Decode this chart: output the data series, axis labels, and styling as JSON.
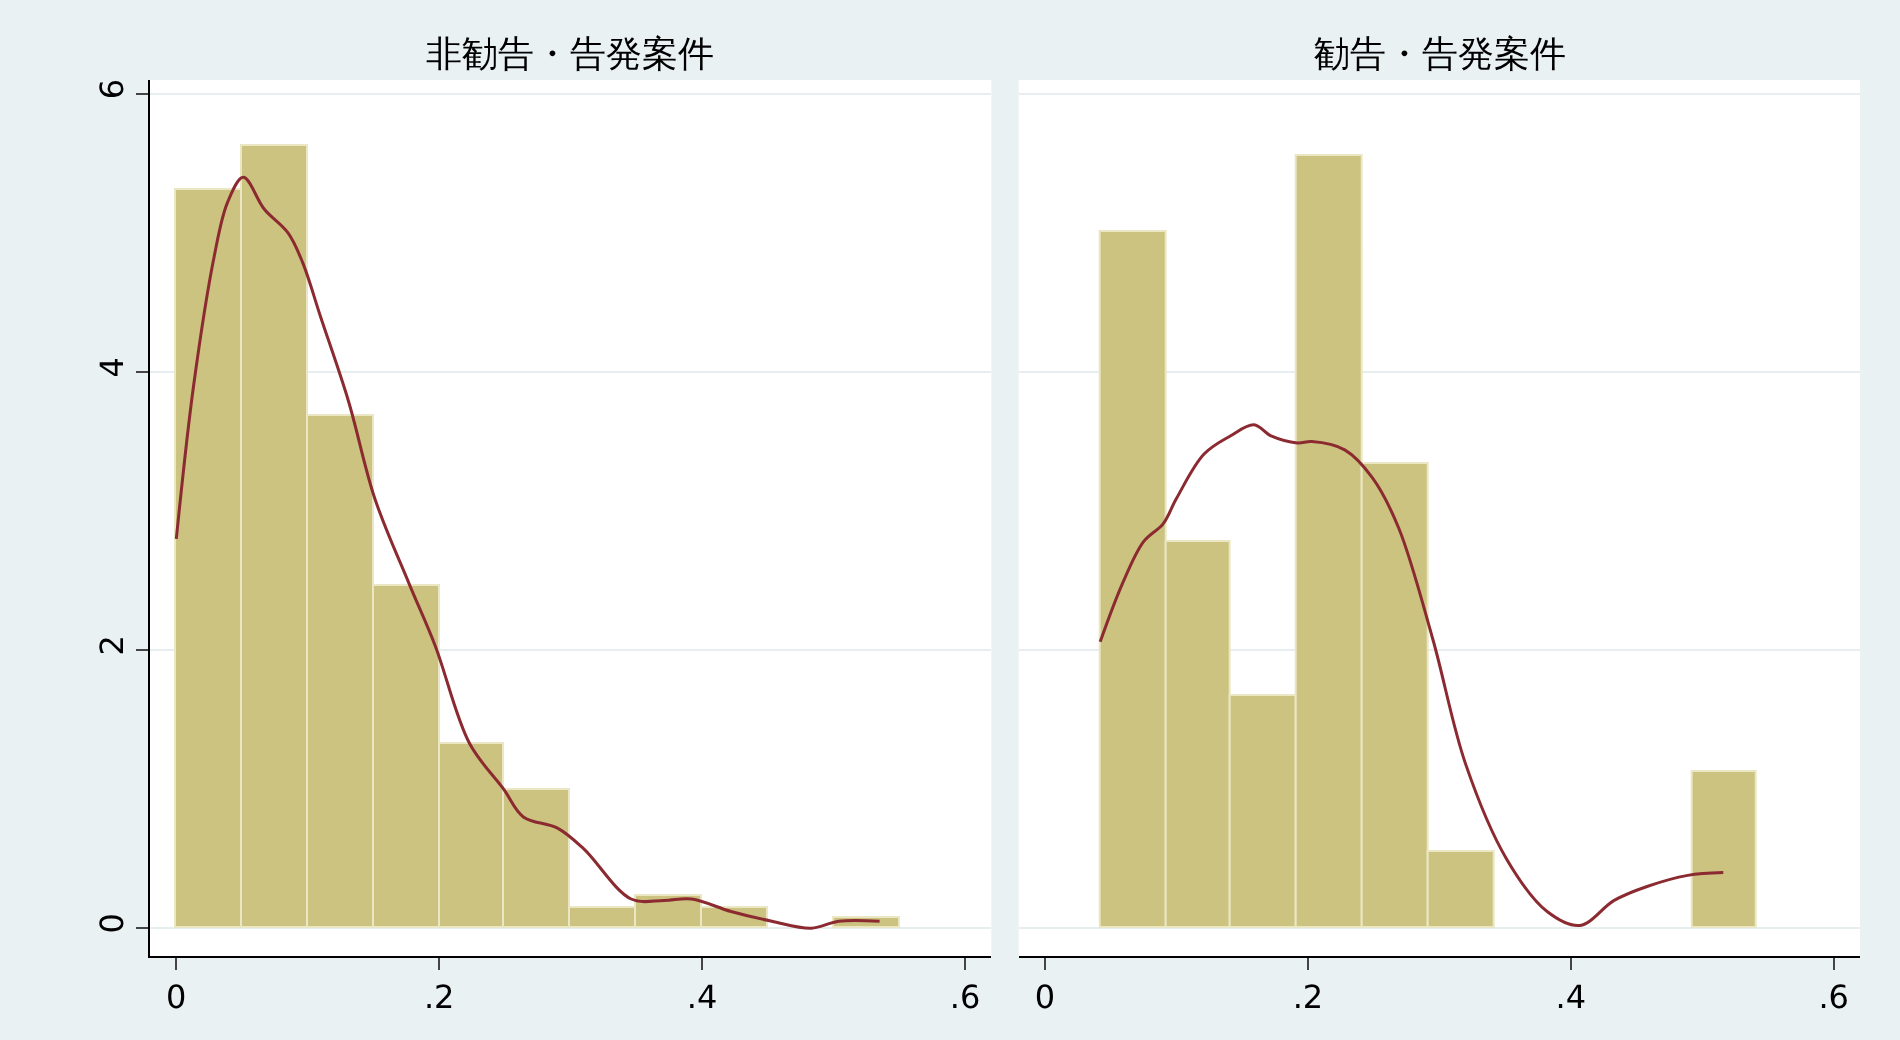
{
  "chart_data": [
    {
      "type": "histogram",
      "title": "非勧告・告発案件",
      "bins": [
        0,
        0.05,
        0.1,
        0.15,
        0.2,
        0.25,
        0.3,
        0.35,
        0.4,
        0.45,
        0.5,
        0.55
      ],
      "values": [
        5.31,
        5.62,
        3.69,
        2.46,
        1.32,
        1.0,
        0.15,
        0.23,
        0.15,
        0,
        0.08
      ],
      "color": "#cbc37f",
      "series": [
        {
          "type": "line",
          "color": "#8b2a30",
          "x": [
            0,
            0.013,
            0.029,
            0.039,
            0.051,
            0.067,
            0.085,
            0.096,
            0.11,
            0.131,
            0.151,
            0.177,
            0.197,
            0.223,
            0.249,
            0.264,
            0.29,
            0.31,
            0.346,
            0.371,
            0.392,
            0.422,
            0.453,
            0.483,
            0.504,
            0.535
          ],
          "values": [
            2.8,
            3.89,
            4.84,
            5.22,
            5.4,
            5.17,
            5.0,
            4.79,
            4.39,
            3.79,
            3.09,
            2.48,
            2.03,
            1.33,
            1.0,
            0.8,
            0.72,
            0.57,
            0.21,
            0.2,
            0.21,
            0.12,
            0.05,
            0,
            0.05,
            0.05
          ]
        }
      ],
      "xlim": [
        -0.02,
        0.62
      ],
      "xticks": [
        0,
        {
          "value": 0.2,
          "label": ".2"
        },
        {
          "value": 0.4,
          "label": ".4"
        },
        {
          "value": 0.6,
          "label": ".6"
        }
      ],
      "ylim": [
        -0.2,
        6.1
      ],
      "yticks": [
        0,
        2,
        4,
        6
      ],
      "grid": "y"
    },
    {
      "type": "histogram",
      "title": "勧告・告発案件",
      "bins": [
        0.042,
        0.092,
        0.142,
        0.192,
        0.242,
        0.292,
        0.342,
        0.392,
        0.442,
        0.492,
        0.542
      ],
      "values": [
        5.0,
        2.78,
        1.67,
        5.56,
        3.34,
        0.55,
        0,
        0,
        0,
        1.12
      ],
      "color": "#cbc37f",
      "series": [
        {
          "type": "line",
          "color": "#8b2a30",
          "x": [
            0.042,
            0.059,
            0.075,
            0.09,
            0.1,
            0.121,
            0.141,
            0.159,
            0.172,
            0.192,
            0.203,
            0.228,
            0.249,
            0.269,
            0.295,
            0.32,
            0.351,
            0.382,
            0.407,
            0.433,
            0.458,
            0.489,
            0.516
          ],
          "values": [
            2.06,
            2.48,
            2.78,
            2.91,
            3.09,
            3.41,
            3.54,
            3.62,
            3.54,
            3.49,
            3.5,
            3.44,
            3.24,
            2.88,
            2.08,
            1.18,
            0.5,
            0.12,
            0.02,
            0.2,
            0.3,
            0.38,
            0.4
          ]
        }
      ],
      "xlim": [
        -0.02,
        0.62
      ],
      "xticks": [
        0,
        {
          "value": 0.2,
          "label": ".2"
        },
        {
          "value": 0.4,
          "label": ".4"
        },
        {
          "value": 0.6,
          "label": ".6"
        }
      ],
      "ylim": [
        -0.2,
        6.1
      ],
      "yticks": [
        0,
        2,
        4,
        6
      ],
      "grid": "y",
      "tick_labels": "x"
    }
  ]
}
